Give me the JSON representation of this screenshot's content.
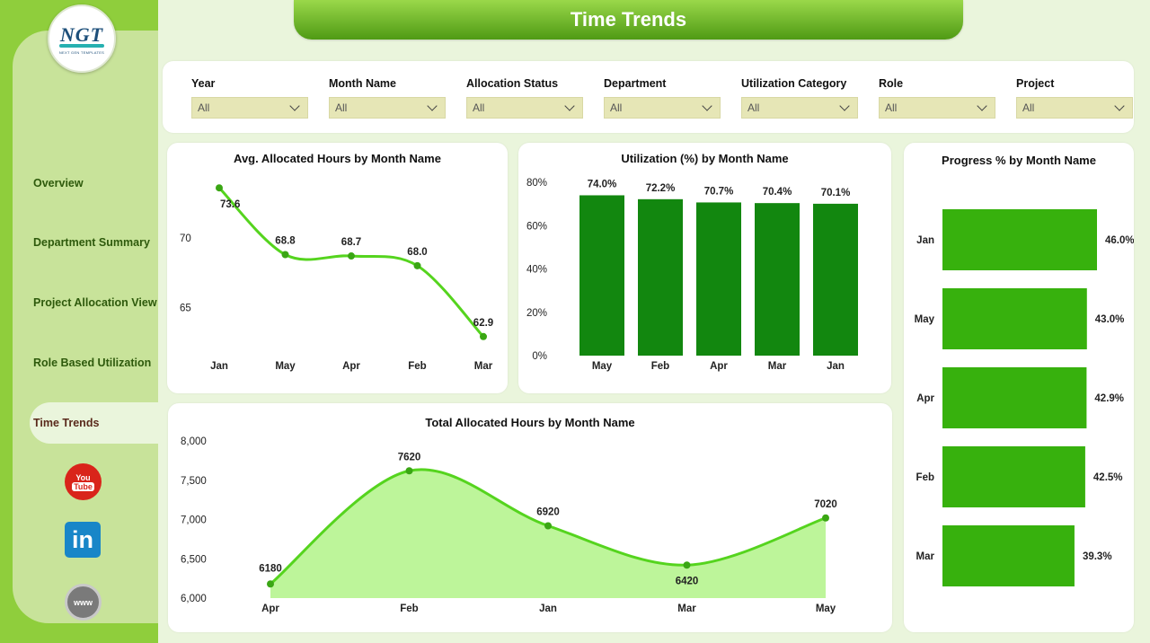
{
  "app": {
    "title": "Time Trends",
    "logo_text": "NGT",
    "logo_subtext": "NEXT GEN TEMPLATES"
  },
  "sidebar": {
    "items": [
      {
        "label": "Overview",
        "active": false
      },
      {
        "label": "Department Summary",
        "active": false
      },
      {
        "label": "Project Allocation View",
        "active": false
      },
      {
        "label": "Role Based Utilization",
        "active": false
      },
      {
        "label": "Time Trends",
        "active": true
      }
    ],
    "social": [
      {
        "name": "youtube-icon",
        "label_top": "You",
        "label_bottom": "Tube"
      },
      {
        "name": "linkedin-icon",
        "label": "in"
      },
      {
        "name": "website-icon",
        "label": "www"
      }
    ]
  },
  "filters": [
    {
      "label": "Year",
      "value": "All"
    },
    {
      "label": "Month Name",
      "value": "All"
    },
    {
      "label": "Allocation Status",
      "value": "All"
    },
    {
      "label": "Department",
      "value": "All"
    },
    {
      "label": "Utilization Category",
      "value": "All"
    },
    {
      "label": "Role",
      "value": "All"
    },
    {
      "label": "Project",
      "value": "All"
    }
  ],
  "colors": {
    "sidebar": "#8fce3c",
    "dark_bar": "#12870f",
    "bright_bar": "#37b10d",
    "line": "#55d41e",
    "area": "#bdf59a"
  },
  "chart_data": [
    {
      "id": "avg_hours",
      "type": "line",
      "title": "Avg. Allocated Hours by Month Name",
      "categories": [
        "Jan",
        "May",
        "Apr",
        "Feb",
        "Mar"
      ],
      "values": [
        73.6,
        68.8,
        68.7,
        68.0,
        62.9
      ],
      "labels": [
        "73.6",
        "68.8",
        "68.7",
        "68.0",
        "62.9"
      ],
      "yticks": [
        {
          "value": 70,
          "label": "70"
        },
        {
          "value": 65,
          "label": "65"
        }
      ],
      "ylim": [
        62.5,
        74
      ],
      "grid": false
    },
    {
      "id": "utilization",
      "type": "bar",
      "title": "Utilization (%) by Month Name",
      "categories": [
        "May",
        "Feb",
        "Apr",
        "Mar",
        "Jan"
      ],
      "values": [
        74.0,
        72.2,
        70.7,
        70.4,
        70.1
      ],
      "labels": [
        "74.0%",
        "72.2%",
        "70.7%",
        "70.4%",
        "70.1%"
      ],
      "yticks": [
        {
          "value": 80,
          "label": "80%"
        },
        {
          "value": 60,
          "label": "60%"
        },
        {
          "value": 40,
          "label": "40%"
        },
        {
          "value": 20,
          "label": "20%"
        },
        {
          "value": 0,
          "label": "0%"
        }
      ],
      "ylim": [
        0,
        80
      ],
      "grid": false
    },
    {
      "id": "progress",
      "type": "bar",
      "orientation": "horizontal",
      "title": "Progress % by Month Name",
      "categories": [
        "Jan",
        "May",
        "Apr",
        "Feb",
        "Mar"
      ],
      "values": [
        46.0,
        43.0,
        42.9,
        42.5,
        39.3
      ],
      "labels": [
        "46.0%",
        "43.0%",
        "42.9%",
        "42.5%",
        "39.3%"
      ],
      "xlim": [
        0,
        46
      ]
    },
    {
      "id": "total_hours",
      "type": "area",
      "title": "Total Allocated Hours by Month Name",
      "categories": [
        "Apr",
        "Feb",
        "Jan",
        "Mar",
        "May"
      ],
      "values": [
        6180,
        7620,
        6920,
        6420,
        7020
      ],
      "labels": [
        "6180",
        "7620",
        "6920",
        "6420",
        "7020"
      ],
      "yticks": [
        {
          "value": 8000,
          "label": "8,000"
        },
        {
          "value": 7500,
          "label": "7,500"
        },
        {
          "value": 7000,
          "label": "7,000"
        },
        {
          "value": 6500,
          "label": "6,500"
        },
        {
          "value": 6000,
          "label": "6,000"
        }
      ],
      "ylim": [
        6000,
        8000
      ],
      "grid": false
    }
  ]
}
